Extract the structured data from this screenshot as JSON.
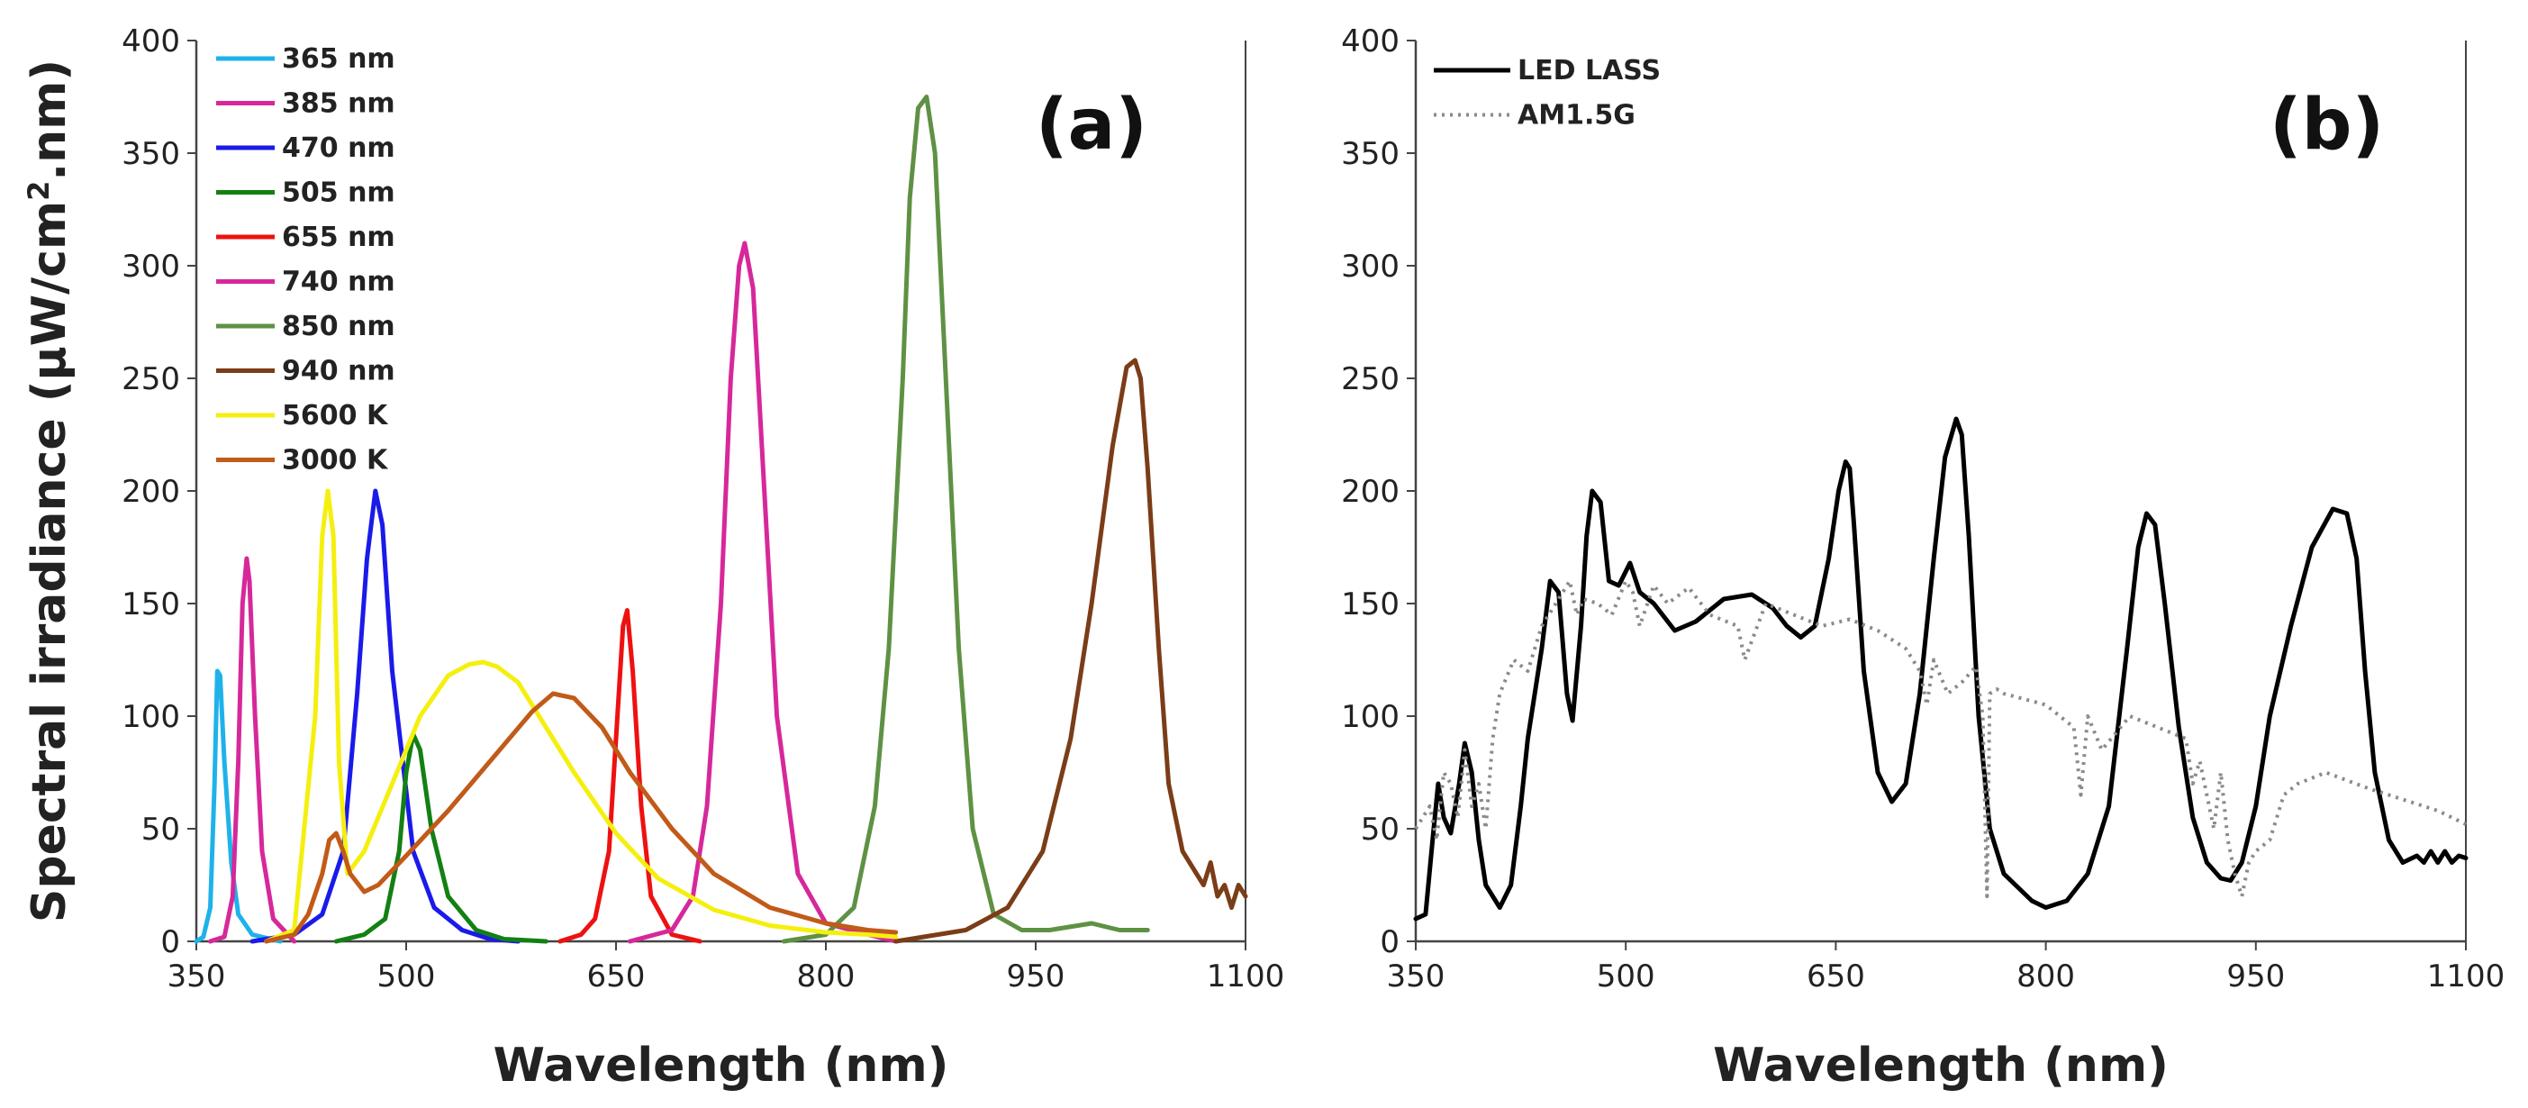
{
  "chart_data": [
    {
      "type": "line",
      "panel_label": "(a)",
      "xlabel": "Wavelength (nm)",
      "ylabel_prefix": "Spectral irradiance (µW/cm",
      "ylabel_sup": "2",
      "ylabel_suffix": ".nm)",
      "xlim": [
        350,
        1100
      ],
      "ylim": [
        0,
        400
      ],
      "xticks": [
        350,
        500,
        650,
        800,
        950,
        1100
      ],
      "yticks": [
        0,
        50,
        100,
        150,
        200,
        250,
        300,
        350,
        400
      ],
      "legend_position": "top-left",
      "series": [
        {
          "name": "365 nm",
          "color": "#1fb2ea",
          "x": [
            350,
            355,
            360,
            363,
            365,
            367,
            370,
            375,
            380,
            390,
            410
          ],
          "y": [
            0,
            2,
            15,
            70,
            120,
            118,
            80,
            35,
            12,
            3,
            0
          ]
        },
        {
          "name": "385 nm",
          "color": "#d6289a",
          "x": [
            360,
            370,
            376,
            380,
            383,
            386,
            388,
            392,
            397,
            405,
            420
          ],
          "y": [
            0,
            2,
            20,
            80,
            150,
            170,
            160,
            100,
            40,
            10,
            0
          ]
        },
        {
          "name": "470 nm",
          "color": "#1a1aea",
          "x": [
            390,
            420,
            440,
            455,
            465,
            472,
            478,
            483,
            490,
            505,
            520,
            540,
            560,
            580
          ],
          "y": [
            0,
            3,
            12,
            40,
            110,
            170,
            200,
            185,
            120,
            40,
            15,
            5,
            1,
            0
          ]
        },
        {
          "name": "505 nm",
          "color": "#138013",
          "x": [
            450,
            470,
            485,
            495,
            500,
            505,
            510,
            518,
            530,
            550,
            570,
            600
          ],
          "y": [
            0,
            3,
            10,
            40,
            75,
            92,
            85,
            50,
            20,
            5,
            1,
            0
          ]
        },
        {
          "name": "655 nm",
          "color": "#ee1111",
          "x": [
            610,
            625,
            635,
            645,
            650,
            655,
            658,
            662,
            668,
            675,
            690,
            710
          ],
          "y": [
            0,
            3,
            10,
            40,
            90,
            140,
            147,
            120,
            60,
            20,
            3,
            0
          ]
        },
        {
          "name": "740 nm",
          "color": "#d6289a",
          "x": [
            660,
            690,
            705,
            715,
            725,
            732,
            738,
            742,
            748,
            756,
            765,
            780,
            800,
            830,
            850
          ],
          "y": [
            0,
            5,
            20,
            60,
            150,
            250,
            300,
            310,
            290,
            200,
            100,
            30,
            8,
            3,
            0
          ]
        },
        {
          "name": "850 nm",
          "color": "#5f9144",
          "x": [
            770,
            800,
            820,
            835,
            845,
            855,
            860,
            866,
            872,
            878,
            885,
            895,
            905,
            920,
            940,
            960,
            990,
            1010,
            1030
          ],
          "y": [
            0,
            3,
            15,
            60,
            130,
            250,
            330,
            370,
            375,
            350,
            260,
            130,
            50,
            12,
            5,
            5,
            8,
            5,
            5
          ]
        },
        {
          "name": "940 nm",
          "color": "#7a3d17",
          "x": [
            850,
            900,
            930,
            955,
            975,
            990,
            1005,
            1015,
            1021,
            1025,
            1030,
            1038,
            1045,
            1055,
            1065,
            1070,
            1075,
            1080,
            1085,
            1090,
            1095,
            1100
          ],
          "y": [
            0,
            5,
            15,
            40,
            90,
            150,
            220,
            255,
            258,
            250,
            210,
            130,
            70,
            40,
            30,
            25,
            35,
            20,
            25,
            15,
            25,
            20
          ]
        },
        {
          "name": "5600 K",
          "color": "#f5ef10",
          "x": [
            400,
            420,
            435,
            440,
            444,
            448,
            452,
            458,
            470,
            490,
            510,
            530,
            545,
            555,
            565,
            580,
            600,
            620,
            650,
            680,
            720,
            760,
            800,
            830,
            850
          ],
          "y": [
            0,
            5,
            100,
            180,
            200,
            180,
            80,
            30,
            40,
            70,
            100,
            118,
            123,
            124,
            122,
            115,
            95,
            75,
            48,
            28,
            14,
            7,
            4,
            3,
            2
          ]
        },
        {
          "name": "3000 K",
          "color": "#c25a18",
          "x": [
            400,
            420,
            430,
            440,
            445,
            450,
            455,
            460,
            470,
            480,
            500,
            530,
            560,
            590,
            605,
            620,
            640,
            660,
            690,
            720,
            760,
            800,
            830,
            850
          ],
          "y": [
            0,
            3,
            12,
            30,
            45,
            48,
            40,
            30,
            22,
            25,
            38,
            58,
            80,
            102,
            110,
            108,
            95,
            75,
            50,
            30,
            15,
            8,
            5,
            4
          ]
        }
      ]
    },
    {
      "type": "line",
      "panel_label": "(b)",
      "xlabel": "Wavelength (nm)",
      "xlim": [
        350,
        1100
      ],
      "ylim": [
        0,
        400
      ],
      "xticks": [
        350,
        500,
        650,
        800,
        950,
        1100
      ],
      "yticks": [
        0,
        50,
        100,
        150,
        200,
        250,
        300,
        350,
        400
      ],
      "legend_position": "top-left",
      "series": [
        {
          "name": "LED LASS",
          "color": "#000000",
          "style": "solid",
          "x": [
            350,
            357,
            362,
            366,
            370,
            375,
            381,
            385,
            390,
            395,
            400,
            410,
            418,
            425,
            430,
            440,
            446,
            452,
            458,
            462,
            468,
            472,
            476,
            482,
            488,
            495,
            503,
            510,
            520,
            535,
            550,
            570,
            590,
            605,
            615,
            625,
            635,
            645,
            652,
            657,
            660,
            663,
            670,
            680,
            690,
            700,
            710,
            720,
            728,
            736,
            740,
            745,
            752,
            760,
            770,
            790,
            800,
            815,
            830,
            845,
            858,
            866,
            872,
            878,
            885,
            895,
            905,
            915,
            925,
            932,
            940,
            950,
            960,
            975,
            990,
            1005,
            1015,
            1022,
            1028,
            1035,
            1045,
            1055,
            1065,
            1070,
            1075,
            1080,
            1085,
            1090,
            1095,
            1100
          ],
          "y": [
            10,
            12,
            45,
            70,
            55,
            48,
            70,
            88,
            75,
            45,
            25,
            15,
            25,
            60,
            90,
            130,
            160,
            155,
            110,
            98,
            140,
            180,
            200,
            195,
            160,
            158,
            168,
            155,
            150,
            138,
            142,
            152,
            154,
            148,
            140,
            135,
            140,
            170,
            200,
            213,
            210,
            185,
            120,
            75,
            62,
            70,
            110,
            170,
            215,
            232,
            225,
            180,
            100,
            50,
            30,
            18,
            15,
            18,
            30,
            60,
            130,
            175,
            190,
            185,
            150,
            95,
            55,
            35,
            28,
            27,
            35,
            60,
            100,
            140,
            175,
            192,
            190,
            170,
            120,
            75,
            45,
            35,
            38,
            35,
            40,
            35,
            40,
            35,
            38,
            37
          ]
        },
        {
          "name": "AM1.5G",
          "color": "#8a8a8a",
          "style": "dotted",
          "x": [
            350,
            360,
            365,
            370,
            375,
            380,
            385,
            390,
            395,
            400,
            405,
            410,
            420,
            430,
            440,
            450,
            460,
            465,
            470,
            480,
            490,
            500,
            505,
            510,
            520,
            530,
            545,
            560,
            580,
            585,
            600,
            620,
            640,
            660,
            680,
            700,
            710,
            715,
            720,
            730,
            740,
            750,
            755,
            758,
            760,
            765,
            770,
            800,
            820,
            825,
            830,
            840,
            860,
            880,
            900,
            905,
            910,
            920,
            925,
            930,
            935,
            940,
            945,
            950,
            960,
            970,
            980,
            1000,
            1030,
            1060,
            1080,
            1100
          ],
          "y": [
            50,
            60,
            45,
            75,
            70,
            55,
            85,
            60,
            70,
            50,
            90,
            110,
            125,
            120,
            140,
            150,
            160,
            145,
            152,
            150,
            145,
            160,
            155,
            140,
            158,
            150,
            157,
            145,
            140,
            125,
            150,
            145,
            140,
            143,
            138,
            130,
            120,
            105,
            125,
            110,
            115,
            122,
            100,
            20,
            110,
            112,
            110,
            105,
            95,
            65,
            100,
            85,
            100,
            95,
            90,
            70,
            80,
            50,
            75,
            45,
            30,
            20,
            35,
            40,
            45,
            65,
            70,
            75,
            68,
            62,
            58,
            52
          ]
        }
      ]
    }
  ]
}
